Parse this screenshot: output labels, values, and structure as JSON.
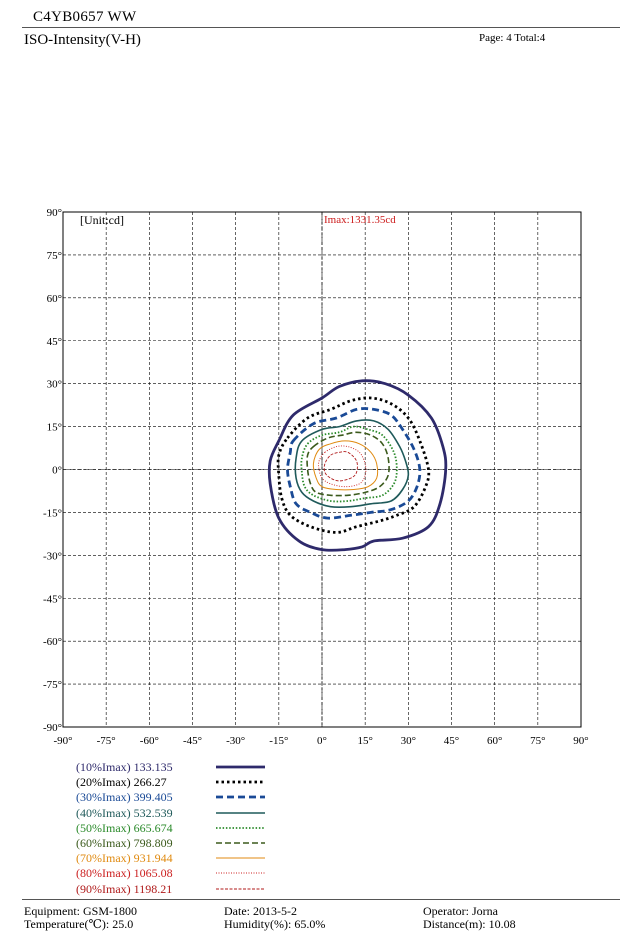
{
  "header": {
    "title": "C4YB0657   WW",
    "subtitle": "ISO-Intensity(V-H)",
    "page_info": "Page: 4  Total:4"
  },
  "chart_data": {
    "type": "contour",
    "unit_label": "[Unit:cd]",
    "imax_label": "Imax:1331.35cd",
    "x_ticks": [
      "-90°",
      "-75°",
      "-60°",
      "-45°",
      "-30°",
      "-15°",
      "0°",
      "15°",
      "30°",
      "45°",
      "60°",
      "75°",
      "90°"
    ],
    "y_ticks": [
      "90°",
      "75°",
      "60°",
      "45°",
      "30°",
      "15°",
      "0°",
      "-15°",
      "-30°",
      "-45°",
      "-60°",
      "-75°",
      "-90°"
    ],
    "xlim": [
      -90,
      90
    ],
    "ylim": [
      -90,
      90
    ],
    "grid": true,
    "series": [
      {
        "name": "(10%Imax) 133.135",
        "color": "#2e2a6b",
        "dash": "solid-thick",
        "points": [
          [
            -15,
            10
          ],
          [
            -10,
            19
          ],
          [
            0,
            25
          ],
          [
            6,
            29
          ],
          [
            14,
            31
          ],
          [
            22,
            30
          ],
          [
            30,
            26
          ],
          [
            38,
            18
          ],
          [
            42,
            8
          ],
          [
            43,
            0
          ],
          [
            41,
            -12
          ],
          [
            37,
            -20
          ],
          [
            28,
            -24
          ],
          [
            18,
            -25
          ],
          [
            14,
            -27
          ],
          [
            8,
            -28
          ],
          [
            0,
            -28
          ],
          [
            -8,
            -25
          ],
          [
            -15,
            -17
          ],
          [
            -18,
            -5
          ],
          [
            -18,
            3
          ]
        ]
      },
      {
        "name": "(20%Imax) 266.27",
        "color": "#000000",
        "dash": "dots",
        "points": [
          [
            -12,
            11
          ],
          [
            -5,
            18
          ],
          [
            3,
            21
          ],
          [
            10,
            24
          ],
          [
            17,
            25
          ],
          [
            24,
            23
          ],
          [
            30,
            18
          ],
          [
            34,
            10
          ],
          [
            37,
            0
          ],
          [
            36,
            -6
          ],
          [
            32,
            -13
          ],
          [
            26,
            -16
          ],
          [
            20,
            -18
          ],
          [
            12,
            -20
          ],
          [
            5,
            -22
          ],
          [
            -4,
            -20
          ],
          [
            -11,
            -16
          ],
          [
            -14,
            -10
          ],
          [
            -15,
            -2
          ],
          [
            -15,
            5
          ]
        ]
      },
      {
        "name": "(30%Imax) 399.405",
        "color": "#1a4a96",
        "dash": "dashes",
        "points": [
          [
            -10,
            10
          ],
          [
            -3,
            16
          ],
          [
            5,
            18
          ],
          [
            12,
            21
          ],
          [
            18,
            21
          ],
          [
            24,
            19
          ],
          [
            28,
            14
          ],
          [
            32,
            7
          ],
          [
            34,
            0
          ],
          [
            33,
            -6
          ],
          [
            30,
            -11
          ],
          [
            24,
            -14
          ],
          [
            17,
            -15
          ],
          [
            10,
            -16
          ],
          [
            2,
            -17
          ],
          [
            -4,
            -15
          ],
          [
            -9,
            -12
          ],
          [
            -11,
            -6
          ],
          [
            -12,
            0
          ],
          [
            -11,
            6
          ]
        ]
      },
      {
        "name": "(40%Imax) 532.539",
        "color": "#1f5a5a",
        "dash": "solid",
        "points": [
          [
            -7,
            10
          ],
          [
            0,
            14
          ],
          [
            6,
            15
          ],
          [
            12,
            17
          ],
          [
            18,
            17
          ],
          [
            23,
            14
          ],
          [
            27,
            8
          ],
          [
            29,
            3
          ],
          [
            30,
            -2
          ],
          [
            28,
            -7
          ],
          [
            24,
            -11
          ],
          [
            17,
            -12
          ],
          [
            10,
            -13
          ],
          [
            3,
            -13
          ],
          [
            -3,
            -11
          ],
          [
            -7,
            -8
          ],
          [
            -9,
            -3
          ],
          [
            -9,
            4
          ]
        ]
      },
      {
        "name": "(50%Imax) 665.674",
        "color": "#2a8a2a",
        "dash": "dense-dots",
        "points": [
          [
            -5,
            9
          ],
          [
            0,
            12
          ],
          [
            6,
            13
          ],
          [
            11,
            15
          ],
          [
            16,
            14
          ],
          [
            21,
            12
          ],
          [
            25,
            6
          ],
          [
            26,
            0
          ],
          [
            25,
            -5
          ],
          [
            21,
            -9
          ],
          [
            15,
            -10
          ],
          [
            9,
            -11
          ],
          [
            3,
            -11
          ],
          [
            -3,
            -9
          ],
          [
            -6,
            -6
          ],
          [
            -7,
            -1
          ],
          [
            -7,
            4
          ]
        ]
      },
      {
        "name": "(60%Imax) 798.809",
        "color": "#3b5a1c",
        "dash": "long-dash",
        "points": [
          [
            -3,
            8
          ],
          [
            2,
            11
          ],
          [
            7,
            12
          ],
          [
            12,
            13
          ],
          [
            17,
            12
          ],
          [
            21,
            9
          ],
          [
            23,
            4
          ],
          [
            23,
            -2
          ],
          [
            20,
            -6
          ],
          [
            15,
            -8
          ],
          [
            9,
            -9
          ],
          [
            3,
            -9
          ],
          [
            -2,
            -8
          ],
          [
            -4,
            -5
          ],
          [
            -5,
            0
          ],
          [
            -5,
            5
          ]
        ]
      },
      {
        "name": "(70%Imax) 931.944",
        "color": "#e08a10",
        "dash": "solid-thin",
        "points": [
          [
            -1,
            7
          ],
          [
            3,
            9
          ],
          [
            8,
            10
          ],
          [
            13,
            9
          ],
          [
            17,
            6
          ],
          [
            19,
            2
          ],
          [
            19,
            -3
          ],
          [
            16,
            -6
          ],
          [
            11,
            -7
          ],
          [
            5,
            -7
          ],
          [
            0,
            -6
          ],
          [
            -2,
            -3
          ],
          [
            -3,
            2
          ]
        ]
      },
      {
        "name": "(80%Imax) 1065.08",
        "color": "#cc2020",
        "dash": "fine-dots",
        "points": [
          [
            1,
            6
          ],
          [
            5,
            8
          ],
          [
            9,
            8
          ],
          [
            13,
            6
          ],
          [
            15,
            2
          ],
          [
            15,
            -2
          ],
          [
            13,
            -5
          ],
          [
            8,
            -6
          ],
          [
            3,
            -5
          ],
          [
            0,
            -3
          ],
          [
            -1,
            0
          ],
          [
            -1,
            3
          ]
        ]
      },
      {
        "name": "(90%Imax) 1198.21",
        "color": "#b01a1a",
        "dash": "fine-dash",
        "points": [
          [
            3,
            5
          ],
          [
            6,
            6
          ],
          [
            9,
            6
          ],
          [
            12,
            3
          ],
          [
            12,
            -1
          ],
          [
            10,
            -3
          ],
          [
            6,
            -4
          ],
          [
            3,
            -3
          ],
          [
            1,
            -1
          ],
          [
            1,
            2
          ]
        ]
      }
    ]
  },
  "footer": {
    "equipment": "Equipment: GSM-1800",
    "temperature": "Temperature(℃): 25.0",
    "date": "Date: 2013-5-2",
    "humidity": "Humidity(%): 65.0%",
    "operator": "Operator: Jorna",
    "distance": "Distance(m): 10.08"
  }
}
